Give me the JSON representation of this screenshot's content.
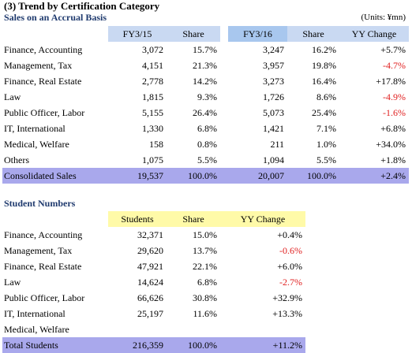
{
  "title": "(3) Trend by Certification Category",
  "sales": {
    "subtitle": "Sales on an Accrual Basis",
    "units": "(Units:  ¥mn)",
    "headers": [
      "FY3/15",
      "Share",
      "FY3/16",
      "Share",
      "YY Change"
    ],
    "rows": [
      {
        "label": "Finance, Accounting",
        "c1": "3,072",
        "c2": "15.7%",
        "c3": "3,247",
        "c4": "16.2%",
        "c5": "+5.7%",
        "neg": false
      },
      {
        "label": "Management, Tax",
        "c1": "4,151",
        "c2": "21.3%",
        "c3": "3,957",
        "c4": "19.8%",
        "c5": "-4.7%",
        "neg": true
      },
      {
        "label": "Finance, Real Estate",
        "c1": "2,778",
        "c2": "14.2%",
        "c3": "3,273",
        "c4": "16.4%",
        "c5": "+17.8%",
        "neg": false
      },
      {
        "label": "Law",
        "c1": "1,815",
        "c2": "9.3%",
        "c3": "1,726",
        "c4": "8.6%",
        "c5": "-4.9%",
        "neg": true
      },
      {
        "label": "Public Officer, Labor",
        "c1": "5,155",
        "c2": "26.4%",
        "c3": "5,073",
        "c4": "25.4%",
        "c5": "-1.6%",
        "neg": true
      },
      {
        "label": "IT, International",
        "c1": "1,330",
        "c2": "6.8%",
        "c3": "1,421",
        "c4": "7.1%",
        "c5": "+6.8%",
        "neg": false
      },
      {
        "label": "Medical, Welfare",
        "c1": "158",
        "c2": "0.8%",
        "c3": "211",
        "c4": "1.0%",
        "c5": "+34.0%",
        "neg": false
      },
      {
        "label": "Others",
        "c1": "1,075",
        "c2": "5.5%",
        "c3": "1,094",
        "c4": "5.5%",
        "c5": "+1.8%",
        "neg": false
      }
    ],
    "total": {
      "label": "Consolidated Sales",
      "c1": "19,537",
      "c2": "100.0%",
      "c3": "20,007",
      "c4": "100.0%",
      "c5": "+2.4%"
    }
  },
  "students": {
    "subtitle": "Student Numbers",
    "headers": [
      "Students",
      "Share",
      "YY Change"
    ],
    "rows": [
      {
        "label": "Finance, Accounting",
        "c1": "32,371",
        "c2": "15.0%",
        "c3": "+0.4%",
        "neg": false
      },
      {
        "label": "Management, Tax",
        "c1": "29,620",
        "c2": "13.7%",
        "c3": "-0.6%",
        "neg": true
      },
      {
        "label": "Finance, Real Estate",
        "c1": "47,921",
        "c2": "22.1%",
        "c3": "+6.0%",
        "neg": false
      },
      {
        "label": "Law",
        "c1": "14,624",
        "c2": "6.8%",
        "c3": "-2.7%",
        "neg": true
      },
      {
        "label": "Public Officer, Labor",
        "c1": "66,626",
        "c2": "30.8%",
        "c3": "+32.9%",
        "neg": false
      },
      {
        "label": "IT, International",
        "c1": "25,197",
        "c2": "11.6%",
        "c3": "+13.3%",
        "neg": false
      },
      {
        "label": "Medical, Welfare",
        "c1": "",
        "c2": "",
        "c3": "",
        "neg": false
      }
    ],
    "total": {
      "label": "Total Students",
      "c1": "216,359",
      "c2": "100.0%",
      "c3": "+11.2%"
    }
  }
}
